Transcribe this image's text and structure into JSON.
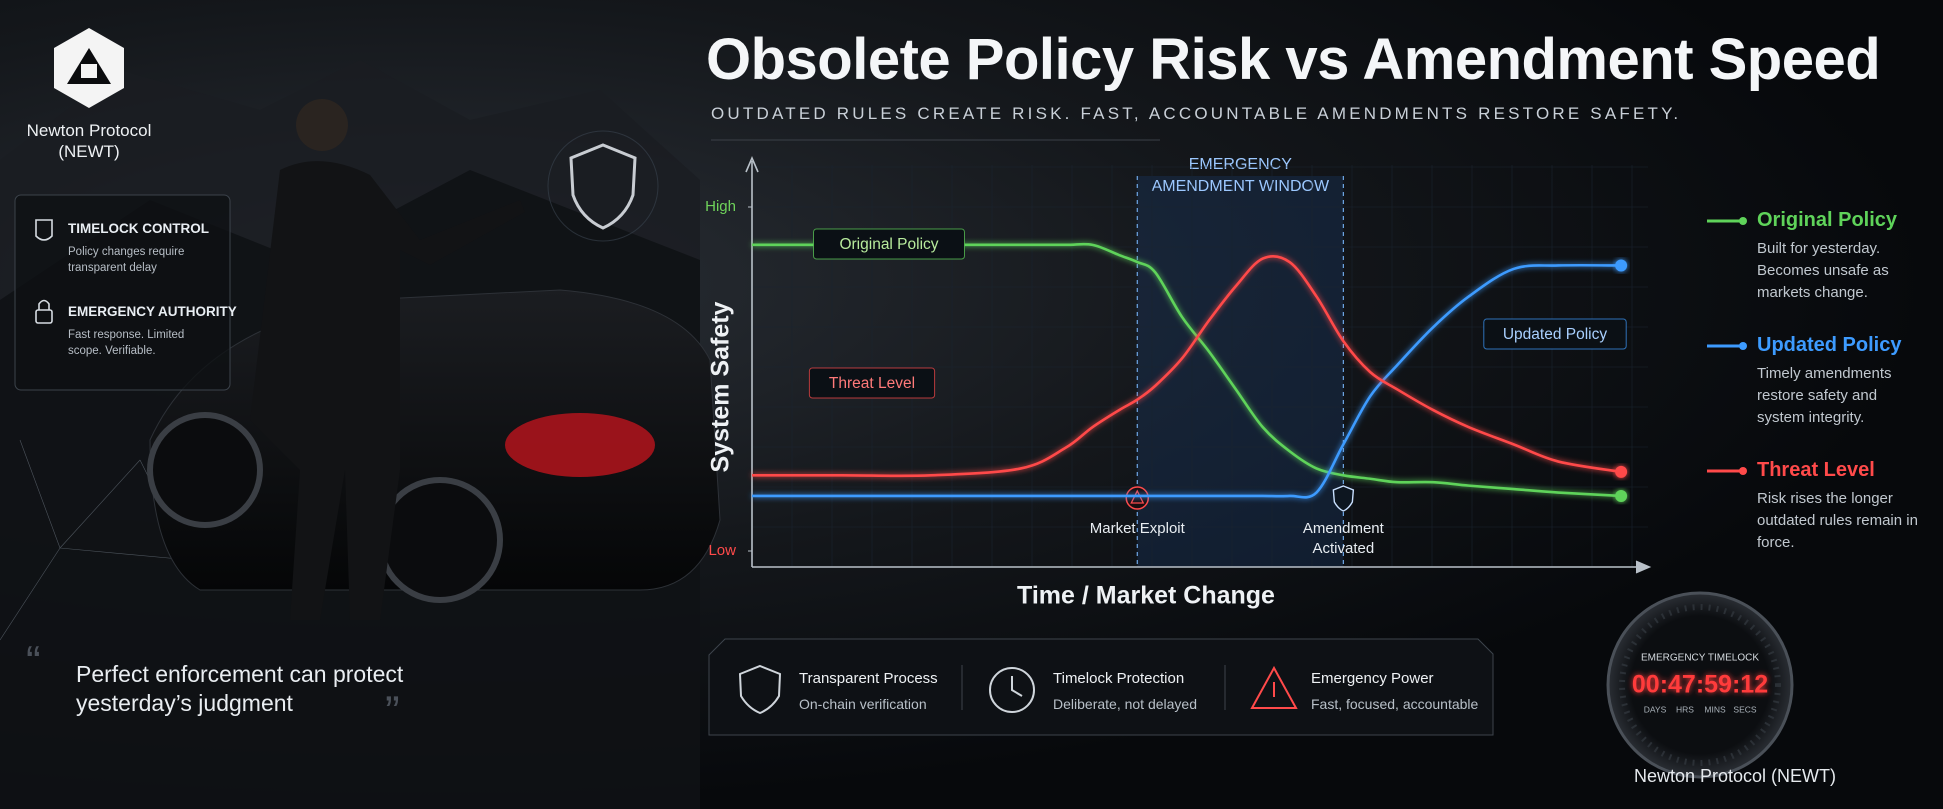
{
  "brand": {
    "name": "Newton Protocol (NEWT)"
  },
  "sidebar": [
    {
      "title": "TIMELOCK CONTROL",
      "text": "Policy changes require transparent delay"
    },
    {
      "title": "EMERGENCY AUTHORITY",
      "text": "Fast response. Limited scope. Verifiable."
    }
  ],
  "quote": "Perfect enforcement can protect yesterday’s judgment",
  "chart_data": {
    "type": "line",
    "title": "Obsolete Policy Risk vs Amendment Speed",
    "subtitle": "OUTDATED RULES CREATE RISK. FAST, ACCOUNTABLE AMENDMENTS RESTORE SAFETY.",
    "xlabel": "Time / Market Change",
    "ylabel": "System Safety",
    "xlim": [
      0,
      100
    ],
    "ylim": [
      0,
      100
    ],
    "yticks": [
      {
        "value": 100,
        "label": "High"
      },
      {
        "value": 0,
        "label": "Low"
      }
    ],
    "x": [
      0,
      10,
      20,
      30,
      35,
      38,
      41,
      43,
      45,
      48,
      51,
      54,
      57,
      60,
      63,
      66,
      69,
      72,
      76,
      80,
      85,
      90,
      97
    ],
    "series": [
      {
        "name": "Original Policy",
        "color": "#5fd35a",
        "description": "Built for yesterday. Becomes unsafe as markets change.",
        "values": [
          89,
          89,
          89,
          89,
          89,
          89,
          86,
          84,
          81,
          68,
          58,
          47,
          36,
          29,
          24,
          22,
          21,
          20,
          20,
          19,
          18,
          17,
          16
        ]
      },
      {
        "name": "Updated Policy",
        "color": "#3d9bff",
        "description": "Timely amendments restore safety and system integrity.",
        "values": [
          16,
          16,
          16,
          16,
          16,
          16,
          16,
          16,
          16,
          16,
          16,
          16,
          16,
          16,
          17,
          31,
          45,
          54,
          65,
          74,
          82,
          83,
          83
        ]
      },
      {
        "name": "Threat Level",
        "color": "#ff4a4a",
        "description": "Risk rises the longer outdated rules remain in force.",
        "values": [
          22,
          22,
          22,
          24,
          30,
          36,
          41,
          44,
          48,
          56,
          67,
          77,
          85,
          84,
          74,
          61,
          52,
          47,
          41,
          36,
          31,
          26,
          23
        ]
      }
    ],
    "window_label": "EMERGENCY AMENDMENT WINDOW",
    "events": [
      {
        "label": "Market Exploit",
        "x": 43
      },
      {
        "label": "Amendment Activated",
        "x": 66
      }
    ]
  },
  "features": [
    {
      "title": "Transparent Process",
      "text": "On-chain verification"
    },
    {
      "title": "Timelock Protection",
      "text": "Deliberate, not delayed"
    },
    {
      "title": "Emergency Power",
      "text": "Fast, focused, accountable"
    }
  ],
  "timer": {
    "label": "EMERGENCY TIMELOCK",
    "time": "00:47:59:12",
    "units": [
      "DAYS",
      "HRS",
      "MINS",
      "SECS"
    ]
  },
  "footer": "Newton Protocol (NEWT)"
}
